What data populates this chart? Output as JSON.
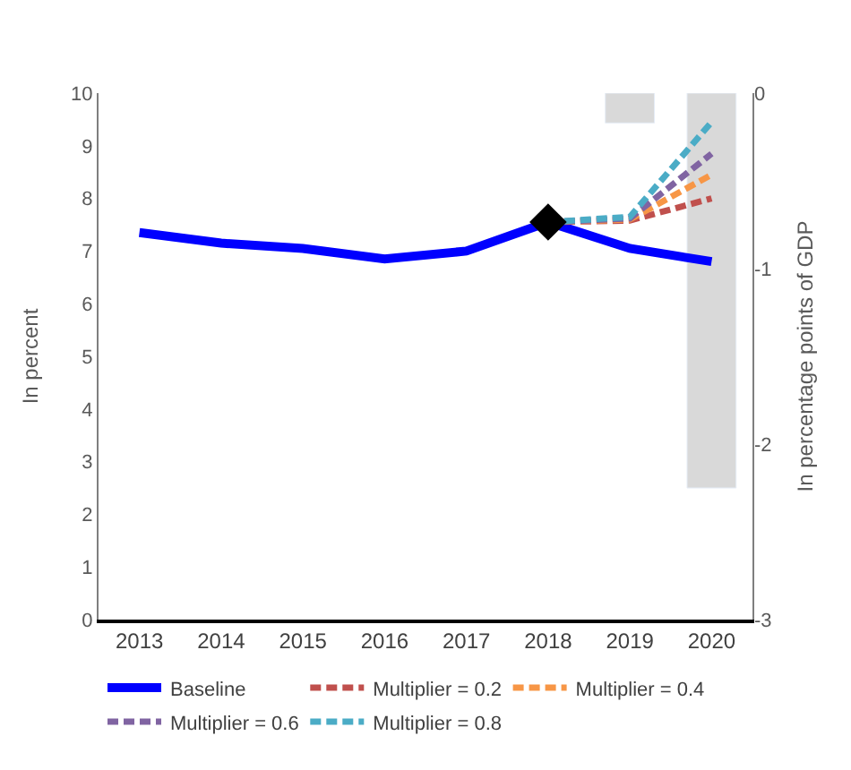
{
  "chart_data": {
    "type": "line",
    "ylabel": "In percent",
    "y2label": "In percentage points of GDP",
    "categories": [
      "2013",
      "2014",
      "2015",
      "2016",
      "2017",
      "2018",
      "2019",
      "2020"
    ],
    "ylim": [
      0,
      10
    ],
    "yticks": [
      0,
      1,
      2,
      3,
      4,
      5,
      6,
      7,
      8,
      9,
      10
    ],
    "y2lim": [
      -3,
      0
    ],
    "y2ticks": [
      -3,
      -2,
      -1,
      0
    ],
    "legend": "bottom",
    "line_style": "solid",
    "marker": "none",
    "series": [
      {
        "type": "bar",
        "axis": "y2",
        "color": "#d9d9d9",
        "values": [
          null,
          null,
          null,
          null,
          null,
          null,
          -0.17,
          -2.25
        ]
      },
      {
        "name": "Baseline",
        "color": "#0000ff",
        "values": [
          7.35,
          7.15,
          7.05,
          6.85,
          7.0,
          7.55,
          7.05,
          6.8
        ]
      },
      {
        "name": "Multiplier = 0.2",
        "color": "#c0504d",
        "line_style": "dashed",
        "values": [
          null,
          null,
          null,
          null,
          null,
          7.55,
          7.58,
          8.0
        ]
      },
      {
        "name": "Multiplier = 0.4",
        "color": "#f79646",
        "line_style": "dashed",
        "values": [
          null,
          null,
          null,
          null,
          null,
          7.55,
          7.6,
          8.45
        ]
      },
      {
        "name": "Multiplier = 0.6",
        "color": "#8064a2",
        "line_style": "dashed",
        "values": [
          null,
          null,
          null,
          null,
          null,
          7.55,
          7.62,
          8.85
        ]
      },
      {
        "name": "Multiplier = 0.8",
        "color": "#4bacc6",
        "line_style": "dashed",
        "values": [
          null,
          null,
          null,
          null,
          null,
          7.55,
          7.65,
          9.45
        ]
      },
      {
        "type": "scatter",
        "marker": "diamond",
        "color": "#000000",
        "values": [
          null,
          null,
          null,
          null,
          null,
          7.55,
          null,
          null
        ]
      }
    ]
  }
}
